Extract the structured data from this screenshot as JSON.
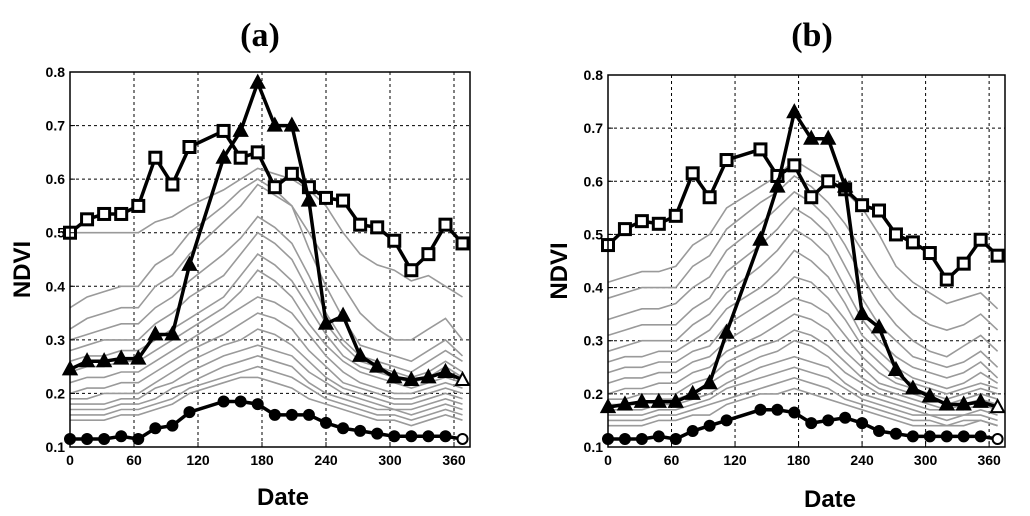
{
  "chart_data": [
    {
      "type": "line",
      "title": "(a)",
      "xlabel": "Date",
      "ylabel": "NDVI",
      "xlim": [
        0,
        375
      ],
      "ylim": [
        0.1,
        0.8
      ],
      "xticks": [
        0,
        60,
        120,
        180,
        240,
        300,
        360
      ],
      "yticks": [
        0.1,
        0.2,
        0.3,
        0.4,
        0.5,
        0.6,
        0.7,
        0.8
      ],
      "grid": true,
      "x": [
        0,
        16,
        32,
        48,
        64,
        80,
        96,
        112,
        144,
        160,
        176,
        192,
        208,
        224,
        240,
        256,
        272,
        288,
        304,
        320,
        336,
        352,
        368
      ],
      "highlighted_series": [
        {
          "marker": "square",
          "values": [
            0.5,
            0.525,
            0.535,
            0.535,
            0.55,
            0.64,
            0.59,
            0.66,
            0.69,
            0.64,
            0.65,
            0.585,
            0.61,
            0.585,
            0.565,
            0.56,
            0.515,
            0.51,
            0.485,
            0.43,
            0.46,
            0.515,
            0.48
          ]
        },
        {
          "marker": "triangle",
          "values": [
            0.245,
            0.26,
            0.26,
            0.265,
            0.265,
            0.31,
            0.31,
            0.44,
            0.64,
            0.69,
            0.78,
            0.7,
            0.7,
            0.56,
            0.33,
            0.345,
            0.27,
            0.25,
            0.23,
            0.225,
            0.23,
            0.24,
            0.225
          ]
        },
        {
          "marker": "circle",
          "values": [
            0.115,
            0.115,
            0.115,
            0.12,
            0.115,
            0.135,
            0.14,
            0.165,
            0.185,
            0.185,
            0.18,
            0.16,
            0.16,
            0.16,
            0.145,
            0.135,
            0.13,
            0.125,
            0.12,
            0.12,
            0.12,
            0.12,
            0.115
          ]
        }
      ],
      "background_series": [
        [
          0.5,
          0.5,
          0.5,
          0.5,
          0.5,
          0.52,
          0.53,
          0.55,
          0.58,
          0.6,
          0.62,
          0.61,
          0.6,
          0.58,
          0.55,
          0.5,
          0.46,
          0.44,
          0.43,
          0.41,
          0.42,
          0.4,
          0.38
        ],
        [
          0.36,
          0.38,
          0.39,
          0.4,
          0.4,
          0.44,
          0.46,
          0.5,
          0.55,
          0.58,
          0.6,
          0.58,
          0.55,
          0.5,
          0.45,
          0.4,
          0.35,
          0.32,
          0.3,
          0.3,
          0.32,
          0.34,
          0.3
        ],
        [
          0.32,
          0.34,
          0.35,
          0.36,
          0.36,
          0.4,
          0.42,
          0.46,
          0.52,
          0.55,
          0.59,
          0.57,
          0.55,
          0.47,
          0.4,
          0.34,
          0.29,
          0.28,
          0.27,
          0.26,
          0.28,
          0.3,
          0.27
        ],
        [
          0.3,
          0.31,
          0.32,
          0.33,
          0.33,
          0.36,
          0.38,
          0.41,
          0.46,
          0.49,
          0.53,
          0.51,
          0.48,
          0.42,
          0.35,
          0.3,
          0.27,
          0.26,
          0.25,
          0.24,
          0.26,
          0.28,
          0.26
        ],
        [
          0.28,
          0.29,
          0.3,
          0.3,
          0.3,
          0.33,
          0.35,
          0.38,
          0.42,
          0.46,
          0.5,
          0.48,
          0.45,
          0.39,
          0.33,
          0.29,
          0.26,
          0.25,
          0.24,
          0.23,
          0.24,
          0.26,
          0.24
        ],
        [
          0.26,
          0.27,
          0.27,
          0.28,
          0.28,
          0.3,
          0.32,
          0.34,
          0.38,
          0.42,
          0.46,
          0.44,
          0.41,
          0.36,
          0.31,
          0.27,
          0.25,
          0.24,
          0.23,
          0.22,
          0.23,
          0.25,
          0.23
        ],
        [
          0.24,
          0.25,
          0.25,
          0.26,
          0.26,
          0.28,
          0.3,
          0.32,
          0.36,
          0.39,
          0.43,
          0.41,
          0.38,
          0.33,
          0.29,
          0.26,
          0.24,
          0.23,
          0.22,
          0.21,
          0.22,
          0.23,
          0.22
        ],
        [
          0.22,
          0.23,
          0.23,
          0.24,
          0.24,
          0.26,
          0.28,
          0.3,
          0.34,
          0.36,
          0.38,
          0.37,
          0.35,
          0.31,
          0.27,
          0.24,
          0.22,
          0.21,
          0.2,
          0.2,
          0.21,
          0.22,
          0.21
        ],
        [
          0.2,
          0.21,
          0.21,
          0.22,
          0.22,
          0.24,
          0.26,
          0.28,
          0.31,
          0.33,
          0.35,
          0.34,
          0.32,
          0.28,
          0.25,
          0.22,
          0.21,
          0.2,
          0.19,
          0.19,
          0.2,
          0.21,
          0.2
        ],
        [
          0.19,
          0.19,
          0.2,
          0.2,
          0.2,
          0.22,
          0.24,
          0.26,
          0.29,
          0.3,
          0.32,
          0.31,
          0.29,
          0.26,
          0.23,
          0.21,
          0.2,
          0.19,
          0.18,
          0.18,
          0.19,
          0.2,
          0.19
        ],
        [
          0.18,
          0.18,
          0.18,
          0.19,
          0.19,
          0.21,
          0.22,
          0.24,
          0.27,
          0.28,
          0.29,
          0.28,
          0.27,
          0.24,
          0.22,
          0.2,
          0.19,
          0.18,
          0.17,
          0.17,
          0.18,
          0.19,
          0.18
        ],
        [
          0.17,
          0.17,
          0.17,
          0.18,
          0.18,
          0.19,
          0.21,
          0.22,
          0.25,
          0.26,
          0.27,
          0.26,
          0.25,
          0.22,
          0.2,
          0.19,
          0.18,
          0.17,
          0.17,
          0.16,
          0.17,
          0.18,
          0.17
        ],
        [
          0.16,
          0.16,
          0.16,
          0.17,
          0.17,
          0.18,
          0.19,
          0.21,
          0.23,
          0.24,
          0.25,
          0.24,
          0.23,
          0.21,
          0.19,
          0.18,
          0.17,
          0.16,
          0.16,
          0.15,
          0.16,
          0.17,
          0.16
        ],
        [
          0.15,
          0.15,
          0.15,
          0.16,
          0.16,
          0.17,
          0.18,
          0.2,
          0.22,
          0.23,
          0.23,
          0.22,
          0.21,
          0.19,
          0.18,
          0.17,
          0.16,
          0.15,
          0.15,
          0.14,
          0.15,
          0.16,
          0.15
        ]
      ]
    },
    {
      "type": "line",
      "title": "(b)",
      "xlabel": "Date",
      "ylabel": "NDVI",
      "xlim": [
        0,
        375
      ],
      "ylim": [
        0.1,
        0.8
      ],
      "xticks": [
        0,
        60,
        120,
        180,
        240,
        300,
        360
      ],
      "yticks": [
        0.1,
        0.2,
        0.3,
        0.4,
        0.5,
        0.6,
        0.7,
        0.8
      ],
      "grid": true,
      "x": [
        0,
        16,
        32,
        48,
        64,
        80,
        96,
        112,
        144,
        160,
        176,
        192,
        208,
        224,
        240,
        256,
        272,
        288,
        304,
        320,
        336,
        352,
        368
      ],
      "highlighted_series": [
        {
          "marker": "square",
          "values": [
            0.48,
            0.51,
            0.525,
            0.52,
            0.535,
            0.615,
            0.57,
            0.64,
            0.66,
            0.61,
            0.63,
            0.57,
            0.6,
            0.585,
            0.555,
            0.545,
            0.5,
            0.485,
            0.465,
            0.415,
            0.445,
            0.49,
            0.46
          ]
        },
        {
          "marker": "triangle",
          "values": [
            0.175,
            0.18,
            0.185,
            0.185,
            0.185,
            0.2,
            0.22,
            0.315,
            0.49,
            0.59,
            0.73,
            0.68,
            0.68,
            0.59,
            0.35,
            0.325,
            0.245,
            0.21,
            0.195,
            0.18,
            0.18,
            0.185,
            0.175
          ]
        },
        {
          "marker": "circle",
          "values": [
            0.115,
            0.115,
            0.115,
            0.12,
            0.115,
            0.13,
            0.14,
            0.15,
            0.17,
            0.17,
            0.165,
            0.145,
            0.15,
            0.155,
            0.145,
            0.13,
            0.125,
            0.12,
            0.12,
            0.12,
            0.12,
            0.12,
            0.115
          ]
        }
      ],
      "background_series": [
        [
          0.41,
          0.42,
          0.43,
          0.43,
          0.44,
          0.48,
          0.5,
          0.55,
          0.59,
          0.61,
          0.64,
          0.62,
          0.6,
          0.58,
          0.55,
          0.5,
          0.44,
          0.41,
          0.39,
          0.37,
          0.38,
          0.39,
          0.36
        ],
        [
          0.38,
          0.39,
          0.4,
          0.4,
          0.4,
          0.44,
          0.46,
          0.51,
          0.56,
          0.58,
          0.61,
          0.59,
          0.56,
          0.52,
          0.47,
          0.42,
          0.38,
          0.35,
          0.33,
          0.32,
          0.33,
          0.35,
          0.32
        ],
        [
          0.34,
          0.35,
          0.36,
          0.36,
          0.37,
          0.4,
          0.42,
          0.47,
          0.52,
          0.55,
          0.58,
          0.56,
          0.53,
          0.48,
          0.42,
          0.37,
          0.33,
          0.3,
          0.28,
          0.27,
          0.29,
          0.31,
          0.28
        ],
        [
          0.31,
          0.32,
          0.33,
          0.33,
          0.33,
          0.36,
          0.38,
          0.43,
          0.48,
          0.51,
          0.55,
          0.53,
          0.5,
          0.44,
          0.38,
          0.33,
          0.3,
          0.27,
          0.26,
          0.25,
          0.26,
          0.28,
          0.25
        ],
        [
          0.28,
          0.29,
          0.3,
          0.3,
          0.3,
          0.33,
          0.35,
          0.39,
          0.44,
          0.47,
          0.51,
          0.49,
          0.46,
          0.4,
          0.34,
          0.3,
          0.27,
          0.25,
          0.24,
          0.23,
          0.24,
          0.26,
          0.23
        ],
        [
          0.26,
          0.27,
          0.27,
          0.28,
          0.28,
          0.3,
          0.32,
          0.36,
          0.4,
          0.43,
          0.47,
          0.45,
          0.42,
          0.37,
          0.31,
          0.28,
          0.25,
          0.23,
          0.22,
          0.21,
          0.22,
          0.24,
          0.22
        ],
        [
          0.24,
          0.25,
          0.25,
          0.26,
          0.26,
          0.28,
          0.29,
          0.33,
          0.37,
          0.39,
          0.42,
          0.41,
          0.38,
          0.34,
          0.29,
          0.26,
          0.23,
          0.22,
          0.21,
          0.2,
          0.21,
          0.22,
          0.21
        ],
        [
          0.22,
          0.23,
          0.23,
          0.24,
          0.24,
          0.26,
          0.27,
          0.3,
          0.34,
          0.36,
          0.38,
          0.37,
          0.35,
          0.31,
          0.27,
          0.24,
          0.22,
          0.21,
          0.2,
          0.19,
          0.2,
          0.21,
          0.2
        ],
        [
          0.2,
          0.21,
          0.21,
          0.22,
          0.22,
          0.24,
          0.25,
          0.28,
          0.31,
          0.33,
          0.35,
          0.34,
          0.32,
          0.28,
          0.25,
          0.22,
          0.21,
          0.2,
          0.19,
          0.18,
          0.19,
          0.2,
          0.19
        ],
        [
          0.19,
          0.19,
          0.2,
          0.2,
          0.2,
          0.22,
          0.23,
          0.26,
          0.29,
          0.3,
          0.32,
          0.31,
          0.29,
          0.26,
          0.23,
          0.21,
          0.2,
          0.19,
          0.18,
          0.17,
          0.18,
          0.19,
          0.18
        ],
        [
          0.18,
          0.18,
          0.18,
          0.19,
          0.19,
          0.2,
          0.22,
          0.24,
          0.27,
          0.28,
          0.3,
          0.29,
          0.27,
          0.24,
          0.22,
          0.2,
          0.19,
          0.18,
          0.17,
          0.17,
          0.17,
          0.18,
          0.17
        ],
        [
          0.17,
          0.17,
          0.17,
          0.18,
          0.18,
          0.19,
          0.2,
          0.22,
          0.25,
          0.26,
          0.27,
          0.26,
          0.25,
          0.22,
          0.2,
          0.19,
          0.18,
          0.17,
          0.16,
          0.16,
          0.16,
          0.17,
          0.16
        ],
        [
          0.16,
          0.16,
          0.16,
          0.17,
          0.17,
          0.18,
          0.19,
          0.21,
          0.23,
          0.24,
          0.25,
          0.24,
          0.23,
          0.21,
          0.19,
          0.18,
          0.17,
          0.16,
          0.16,
          0.15,
          0.16,
          0.16,
          0.15
        ],
        [
          0.15,
          0.15,
          0.15,
          0.16,
          0.16,
          0.17,
          0.18,
          0.19,
          0.21,
          0.22,
          0.23,
          0.22,
          0.21,
          0.19,
          0.18,
          0.17,
          0.16,
          0.15,
          0.15,
          0.14,
          0.15,
          0.15,
          0.14
        ],
        [
          0.14,
          0.14,
          0.14,
          0.15,
          0.15,
          0.16,
          0.16,
          0.18,
          0.2,
          0.2,
          0.21,
          0.2,
          0.19,
          0.18,
          0.17,
          0.16,
          0.15,
          0.14,
          0.14,
          0.14,
          0.14,
          0.15,
          0.14
        ]
      ]
    }
  ],
  "colors": {
    "highlight": "#000000",
    "background_series": "#9a9a9a",
    "grid": "#000000",
    "axes": "#000000"
  }
}
